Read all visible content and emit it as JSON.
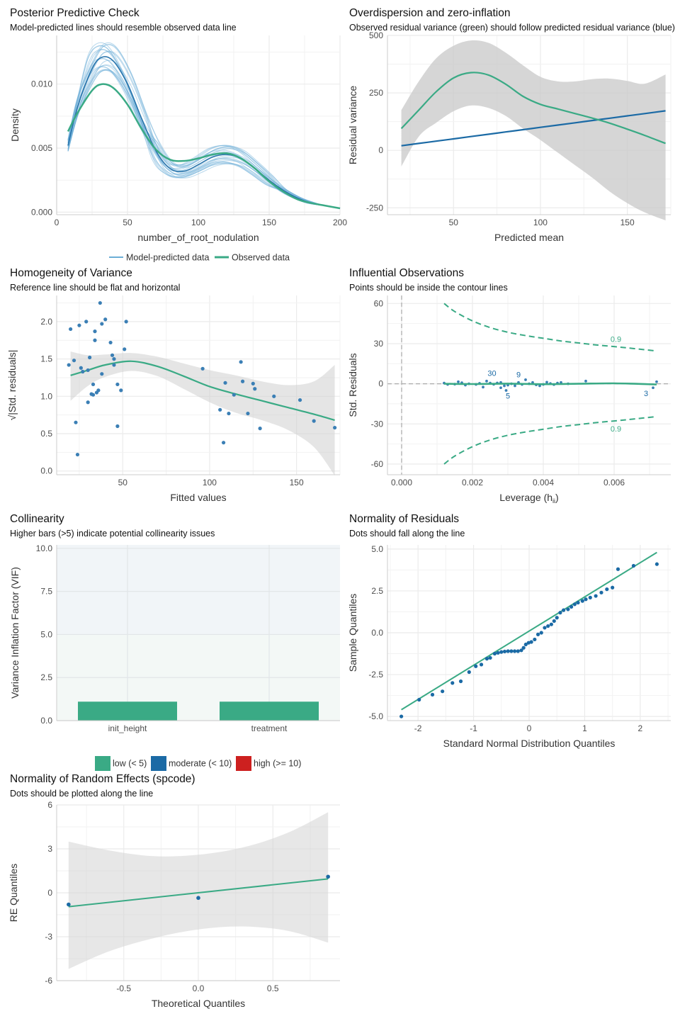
{
  "colors": {
    "green": "#3aaa85",
    "blue": "#1b6aa5",
    "light_blue": "#6baed6",
    "red": "#cd201f",
    "grid": "#ebebeb",
    "ribbon": "#d0d0d0"
  },
  "panels": {
    "ppc": {
      "title": "Posterior Predictive Check",
      "subtitle": "Model-predicted lines should resemble observed data line",
      "chart_data": {
        "type": "line",
        "xlabel": "number_of_root_nodulation",
        "ylabel": "Density",
        "xlim": [
          0,
          200
        ],
        "ylim": [
          -0.0002,
          0.0138
        ],
        "x_ticks": [
          0,
          50,
          100,
          150,
          200
        ],
        "y_ticks": [
          0,
          0.005,
          0.01
        ],
        "y_tick_labels": [
          "0.000",
          "0.005",
          "0.010"
        ],
        "legend_position": "bottom",
        "legend": [
          "Model-predicted data",
          "Observed data"
        ],
        "x": [
          8,
          15,
          25,
          32,
          40,
          50,
          60,
          70,
          80,
          90,
          100,
          110,
          120,
          130,
          140,
          150,
          160,
          170,
          180,
          190,
          200
        ],
        "series": [
          {
            "name": "Observed data",
            "values": [
              0.0063,
              0.0078,
              0.0095,
              0.01,
              0.0097,
              0.0084,
              0.0065,
              0.0049,
              0.0041,
              0.004,
              0.0042,
              0.0045,
              0.0046,
              0.0042,
              0.0034,
              0.0024,
              0.0016,
              0.001,
              0.0007,
              0.0005,
              0.0003
            ]
          },
          {
            "name": "Model-predicted data",
            "values": [
              0.0052,
              0.0083,
              0.0112,
              0.0121,
              0.0118,
              0.01,
              0.0073,
              0.0048,
              0.0034,
              0.0032,
              0.0037,
              0.0043,
              0.0045,
              0.0042,
              0.0034,
              0.0025,
              0.0017,
              0.0011,
              0.0007,
              0.0005,
              0.0003
            ]
          }
        ]
      }
    },
    "overdisp": {
      "title": "Overdispersion and zero-inflation",
      "subtitle": "Observed residual variance (green) should follow predicted residual variance (blue)",
      "chart_data": {
        "type": "line",
        "xlabel": "Predicted mean",
        "ylabel": "Residual variance",
        "xlim": [
          12,
          175
        ],
        "ylim": [
          -280,
          500
        ],
        "x_ticks": [
          50,
          100,
          150
        ],
        "y_ticks": [
          -250,
          0,
          250,
          500
        ],
        "x": [
          20,
          30,
          40,
          50,
          60,
          70,
          80,
          90,
          100,
          110,
          120,
          130,
          140,
          150,
          160,
          172
        ],
        "series": [
          {
            "name": "observed",
            "values": [
              95,
              175,
              255,
              315,
              338,
              328,
              288,
              235,
              200,
              180,
              160,
              140,
              118,
              92,
              65,
              30
            ]
          },
          {
            "name": "predicted",
            "values": [
              20,
              30,
              40,
              50,
              60,
              70,
              80,
              90,
              100,
              110,
              120,
              130,
              140,
              150,
              160,
              172
            ]
          }
        ],
        "ribbon_upper": [
          175,
          300,
          400,
          455,
          478,
          468,
          425,
          370,
          320,
          300,
          300,
          310,
          312,
          302,
          290,
          330
        ],
        "ribbon_lower": [
          -70,
          60,
          120,
          170,
          195,
          185,
          150,
          95,
          45,
          -10,
          -65,
          -120,
          -180,
          -230,
          -270,
          -305
        ]
      }
    },
    "homog": {
      "title": "Homogeneity of Variance",
      "subtitle": "Reference line should be flat and horizontal",
      "chart_data": {
        "type": "scatter",
        "xlabel": "Fitted values",
        "ylabel": "√|Std. residuals|",
        "xlim": [
          12,
          175
        ],
        "ylim": [
          -0.05,
          2.35
        ],
        "x_ticks": [
          50,
          100,
          150
        ],
        "y_ticks": [
          0,
          0.5,
          1,
          1.5,
          2
        ],
        "y_tick_labels": [
          "0.0",
          "0.5",
          "1.0",
          "1.5",
          "2.0"
        ],
        "points": [
          [
            19,
            1.42
          ],
          [
            20,
            1.9
          ],
          [
            22,
            1.48
          ],
          [
            23,
            0.65
          ],
          [
            24,
            0.22
          ],
          [
            25,
            1.95
          ],
          [
            26,
            1.38
          ],
          [
            27,
            1.33
          ],
          [
            29,
            2.0
          ],
          [
            30,
            0.92
          ],
          [
            30,
            1.35
          ],
          [
            31,
            1.52
          ],
          [
            32,
            1.03
          ],
          [
            33,
            1.16
          ],
          [
            33,
            1.02
          ],
          [
            34,
            1.87
          ],
          [
            34,
            1.75
          ],
          [
            35,
            1.05
          ],
          [
            36,
            1.08
          ],
          [
            37,
            2.25
          ],
          [
            38,
            1.97
          ],
          [
            38,
            1.3
          ],
          [
            40,
            2.03
          ],
          [
            43,
            1.72
          ],
          [
            44,
            1.55
          ],
          [
            45,
            1.42
          ],
          [
            45,
            1.5
          ],
          [
            47,
            1.16
          ],
          [
            47,
            0.6
          ],
          [
            49,
            1.08
          ],
          [
            51,
            1.63
          ],
          [
            52,
            2.0
          ],
          [
            96,
            1.37
          ],
          [
            106,
            0.82
          ],
          [
            108,
            0.38
          ],
          [
            109,
            1.18
          ],
          [
            111,
            0.77
          ],
          [
            114,
            1.02
          ],
          [
            118,
            1.46
          ],
          [
            119,
            1.2
          ],
          [
            122,
            0.77
          ],
          [
            125,
            1.17
          ],
          [
            126,
            1.1
          ],
          [
            129,
            0.57
          ],
          [
            137,
            1.0
          ],
          [
            152,
            0.95
          ],
          [
            160,
            0.67
          ],
          [
            172,
            0.58
          ]
        ],
        "fit_x": [
          20,
          30,
          40,
          55,
          70,
          85,
          100,
          115,
          130,
          145,
          160,
          172
        ],
        "fit_y": [
          1.28,
          1.35,
          1.42,
          1.47,
          1.4,
          1.27,
          1.13,
          1.03,
          0.94,
          0.85,
          0.76,
          0.68
        ],
        "ribbon_upper": [
          1.6,
          1.55,
          1.56,
          1.58,
          1.53,
          1.44,
          1.35,
          1.28,
          1.2,
          1.15,
          1.2,
          1.42
        ],
        "ribbon_lower": [
          0.94,
          1.14,
          1.26,
          1.34,
          1.27,
          1.1,
          0.92,
          0.78,
          0.68,
          0.55,
          0.32,
          -0.06
        ]
      }
    },
    "influ": {
      "title": "Influential Observations",
      "subtitle": "Points should be inside the contour lines",
      "chart_data": {
        "type": "scatter",
        "xlabel": "Leverage (h",
        "xlabel_sub": "ii",
        "xlabel_end": ")",
        "ylabel": "Std. Residuals",
        "xlim": [
          -0.0004,
          0.0076
        ],
        "ylim": [
          -68,
          66
        ],
        "x_ticks": [
          0,
          0.002,
          0.004,
          0.006
        ],
        "x_tick_labels": [
          "0.000",
          "0.002",
          "0.004",
          "0.006"
        ],
        "y_ticks": [
          -60,
          -30,
          0,
          30,
          60
        ],
        "contour_label": "0.9",
        "contour_x": [
          0.0012,
          0.0015,
          0.002,
          0.0025,
          0.003,
          0.0035,
          0.004,
          0.0045,
          0.005,
          0.0055,
          0.006,
          0.0065,
          0.0072
        ],
        "contour_upper": [
          60,
          54,
          47,
          42,
          38.5,
          36,
          34,
          32,
          30.5,
          29,
          27.8,
          26.5,
          24.5
        ],
        "contour_lower": [
          -60,
          -54,
          -47,
          -42,
          -38.5,
          -36,
          -34,
          -32,
          -30.5,
          -29,
          -27.8,
          -26.5,
          -24.5
        ],
        "labels": [
          {
            "text": "30",
            "x": 0.00255,
            "y": 8
          },
          {
            "text": "9",
            "x": 0.0033,
            "y": 7
          },
          {
            "text": "5",
            "x": 0.003,
            "y": -9
          },
          {
            "text": "3",
            "x": 0.0069,
            "y": -7
          }
        ],
        "points": [
          [
            0.0012,
            0.5
          ],
          [
            0.0013,
            -0.5
          ],
          [
            0.0015,
            -0.3
          ],
          [
            0.0016,
            1.5
          ],
          [
            0.0017,
            0.8
          ],
          [
            0.0018,
            -1
          ],
          [
            0.0019,
            0
          ],
          [
            0.0021,
            -0.5
          ],
          [
            0.0022,
            0.3
          ],
          [
            0.0023,
            -2.5
          ],
          [
            0.0024,
            2
          ],
          [
            0.0025,
            0.5
          ],
          [
            0.0026,
            -0.4
          ],
          [
            0.0027,
            0.6
          ],
          [
            0.0028,
            -3
          ],
          [
            0.0028,
            1
          ],
          [
            0.0029,
            -1.5
          ],
          [
            0.00295,
            -5
          ],
          [
            0.003,
            -1
          ],
          [
            0.0031,
            0
          ],
          [
            0.0032,
            -1.5
          ],
          [
            0.0033,
            1
          ],
          [
            0.0034,
            -0.5
          ],
          [
            0.0035,
            3
          ],
          [
            0.0036,
            0
          ],
          [
            0.0037,
            1
          ],
          [
            0.0038,
            -0.8
          ],
          [
            0.0039,
            -1.5
          ],
          [
            0.004,
            -0.5
          ],
          [
            0.0041,
            1.2
          ],
          [
            0.0042,
            0.2
          ],
          [
            0.0043,
            -0.6
          ],
          [
            0.0044,
            0.5
          ],
          [
            0.0045,
            1
          ],
          [
            0.0047,
            0
          ],
          [
            0.0052,
            2
          ],
          [
            0.0072,
            1.5
          ],
          [
            0.0071,
            -3
          ]
        ],
        "fit_x": [
          0.0012,
          0.002,
          0.003,
          0.004,
          0.005,
          0.006,
          0.0072
        ],
        "fit_y": [
          0,
          -0.2,
          0.1,
          -0.3,
          0,
          0.3,
          -0.5
        ]
      }
    },
    "collin": {
      "title": "Collinearity",
      "subtitle": "Higher bars (>5) indicate potential collinearity issues",
      "chart_data": {
        "type": "bar",
        "xlabel": "",
        "ylabel": "Variance Inflation Factor (VIF)",
        "ylim": [
          0,
          10.2
        ],
        "y_ticks": [
          0,
          2.5,
          5,
          7.5,
          10
        ],
        "y_tick_labels": [
          "0.0",
          "2.5",
          "5.0",
          "7.5",
          "10.0"
        ],
        "categories": [
          "init_height",
          "treatment"
        ],
        "values": [
          1.1,
          1.1
        ],
        "legend_position": "bottom",
        "legend": [
          {
            "label": "low (< 5)",
            "color": "#3aaa85"
          },
          {
            "label": "moderate (< 10)",
            "color": "#1b6aa5"
          },
          {
            "label": "high (>= 10)",
            "color": "#cd201f"
          }
        ]
      }
    },
    "normres": {
      "title": "Normality of Residuals",
      "subtitle": "Dots should fall along the line",
      "chart_data": {
        "type": "scatter",
        "xlabel": "Standard Normal Distribution Quantiles",
        "ylabel": "Sample Quantiles",
        "xlim": [
          -2.55,
          2.55
        ],
        "ylim": [
          -5.25,
          5.25
        ],
        "x_ticks": [
          -2,
          -1,
          0,
          1,
          2
        ],
        "y_ticks": [
          -5,
          -2.5,
          0,
          2.5,
          5
        ],
        "y_tick_labels": [
          "-5.0",
          "-2.5",
          "0.0",
          "2.5",
          "5.0"
        ],
        "line": {
          "x": [
            -2.3,
            2.3
          ],
          "y": [
            -4.6,
            4.8
          ]
        },
        "points": [
          [
            -2.3,
            -5.0
          ],
          [
            -1.98,
            -4.0
          ],
          [
            -1.74,
            -3.7
          ],
          [
            -1.56,
            -3.5
          ],
          [
            -1.38,
            -3.0
          ],
          [
            -1.23,
            -2.9
          ],
          [
            -1.08,
            -2.35
          ],
          [
            -0.96,
            -2.0
          ],
          [
            -0.86,
            -1.9
          ],
          [
            -0.76,
            -1.55
          ],
          [
            -0.7,
            -1.5
          ],
          [
            -0.62,
            -1.25
          ],
          [
            -0.56,
            -1.2
          ],
          [
            -0.5,
            -1.15
          ],
          [
            -0.44,
            -1.12
          ],
          [
            -0.38,
            -1.1
          ],
          [
            -0.32,
            -1.1
          ],
          [
            -0.26,
            -1.1
          ],
          [
            -0.2,
            -1.1
          ],
          [
            -0.14,
            -1.05
          ],
          [
            -0.1,
            -0.9
          ],
          [
            -0.06,
            -0.7
          ],
          [
            -0.01,
            -0.6
          ],
          [
            0.04,
            -0.55
          ],
          [
            0.1,
            -0.4
          ],
          [
            0.16,
            -0.1
          ],
          [
            0.22,
            0.0
          ],
          [
            0.28,
            0.3
          ],
          [
            0.34,
            0.4
          ],
          [
            0.4,
            0.5
          ],
          [
            0.45,
            0.7
          ],
          [
            0.5,
            0.9
          ],
          [
            0.56,
            1.2
          ],
          [
            0.62,
            1.35
          ],
          [
            0.7,
            1.4
          ],
          [
            0.76,
            1.55
          ],
          [
            0.82,
            1.7
          ],
          [
            0.88,
            1.8
          ],
          [
            0.96,
            1.9
          ],
          [
            1.02,
            2.0
          ],
          [
            1.1,
            2.1
          ],
          [
            1.2,
            2.2
          ],
          [
            1.3,
            2.4
          ],
          [
            1.4,
            2.6
          ],
          [
            1.5,
            2.7
          ],
          [
            1.6,
            3.8
          ],
          [
            1.88,
            4.0
          ],
          [
            2.3,
            4.1
          ]
        ]
      }
    },
    "normre": {
      "title": "Normality of Random Effects (spcode)",
      "subtitle": "Dots should be plotted along the line",
      "chart_data": {
        "type": "scatter",
        "xlabel": "Theoretical Quantiles",
        "ylabel": "RE Quantiles",
        "xlim": [
          -0.95,
          0.95
        ],
        "ylim": [
          -6,
          6
        ],
        "x_ticks": [
          -0.5,
          0,
          0.5
        ],
        "x_tick_labels": [
          "-0.5",
          "0.0",
          "0.5"
        ],
        "y_ticks": [
          -6,
          -3,
          0,
          3,
          6
        ],
        "points": [
          [
            -0.87,
            -0.8
          ],
          [
            0.0,
            -0.35
          ],
          [
            0.87,
            1.1
          ]
        ],
        "line": {
          "x": [
            -0.87,
            0.87
          ],
          "y": [
            -0.95,
            0.95
          ]
        },
        "ribbon_x": [
          -0.87,
          -0.6,
          -0.3,
          0.0,
          0.3,
          0.6,
          0.87
        ],
        "ribbon_upper": [
          3.5,
          2.9,
          2.5,
          2.6,
          3.1,
          4.1,
          5.5
        ],
        "ribbon_lower": [
          -5.2,
          -4.0,
          -3.1,
          -2.5,
          -2.3,
          -2.6,
          -3.4
        ]
      }
    }
  }
}
